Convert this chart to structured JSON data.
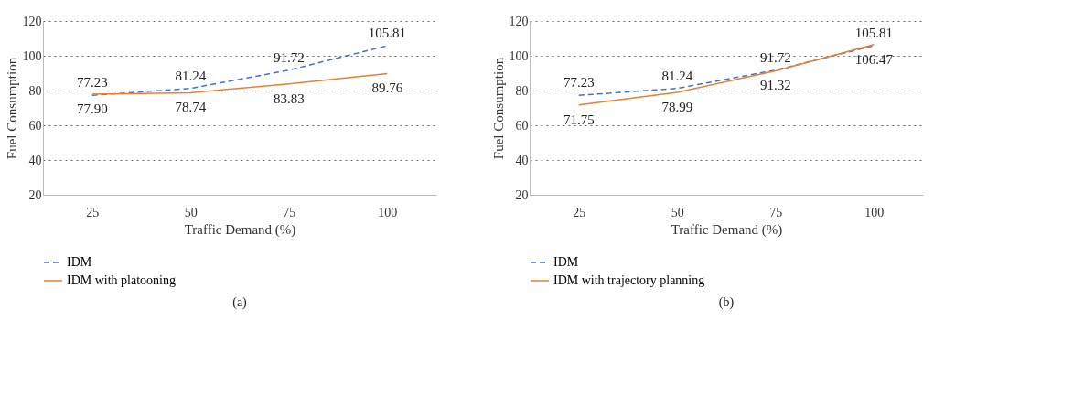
{
  "chart_data": [
    {
      "type": "line",
      "xlabel": "Traffic Demand (%)",
      "ylabel": "Fuel Consumption",
      "categories": [
        "25",
        "50",
        "75",
        "100"
      ],
      "ylim": [
        20,
        120
      ],
      "yticks": [
        20,
        40,
        60,
        80,
        100,
        120
      ],
      "grid": "y",
      "legend": "bottom",
      "annotations": [
        "(a)"
      ],
      "series": [
        {
          "name": "IDM",
          "color": "#4472c4",
          "line_style": "dashed",
          "values": [
            77.23,
            81.24,
            91.72,
            105.81
          ],
          "value_labels": [
            "77.23",
            "81.24",
            "91.72",
            "105.81"
          ]
        },
        {
          "name": "IDM with platooning",
          "color": "#ed7d31",
          "line_style": "solid",
          "values": [
            77.9,
            78.74,
            83.83,
            89.76
          ],
          "value_labels": [
            "77.90",
            "78.74",
            "83.83",
            "89.76"
          ]
        }
      ]
    },
    {
      "type": "line",
      "xlabel": "Traffic Demand (%)",
      "ylabel": "Fuel Consumption",
      "categories": [
        "25",
        "50",
        "75",
        "100"
      ],
      "ylim": [
        20,
        120
      ],
      "yticks": [
        20,
        40,
        60,
        80,
        100,
        120
      ],
      "grid": "y",
      "legend": "bottom",
      "annotations": [
        "(b)"
      ],
      "series": [
        {
          "name": "IDM",
          "color": "#4472c4",
          "line_style": "dashed",
          "values": [
            77.23,
            81.24,
            91.72,
            105.81
          ],
          "value_labels": [
            "77.23",
            "81.24",
            "91.72",
            "105.81"
          ]
        },
        {
          "name": "IDM with trajectory planning",
          "color": "#ed7d31",
          "line_style": "solid",
          "values": [
            71.75,
            78.99,
            91.32,
            106.47
          ],
          "value_labels": [
            "71.75",
            "78.99",
            "91.32",
            "106.47"
          ]
        }
      ]
    }
  ]
}
